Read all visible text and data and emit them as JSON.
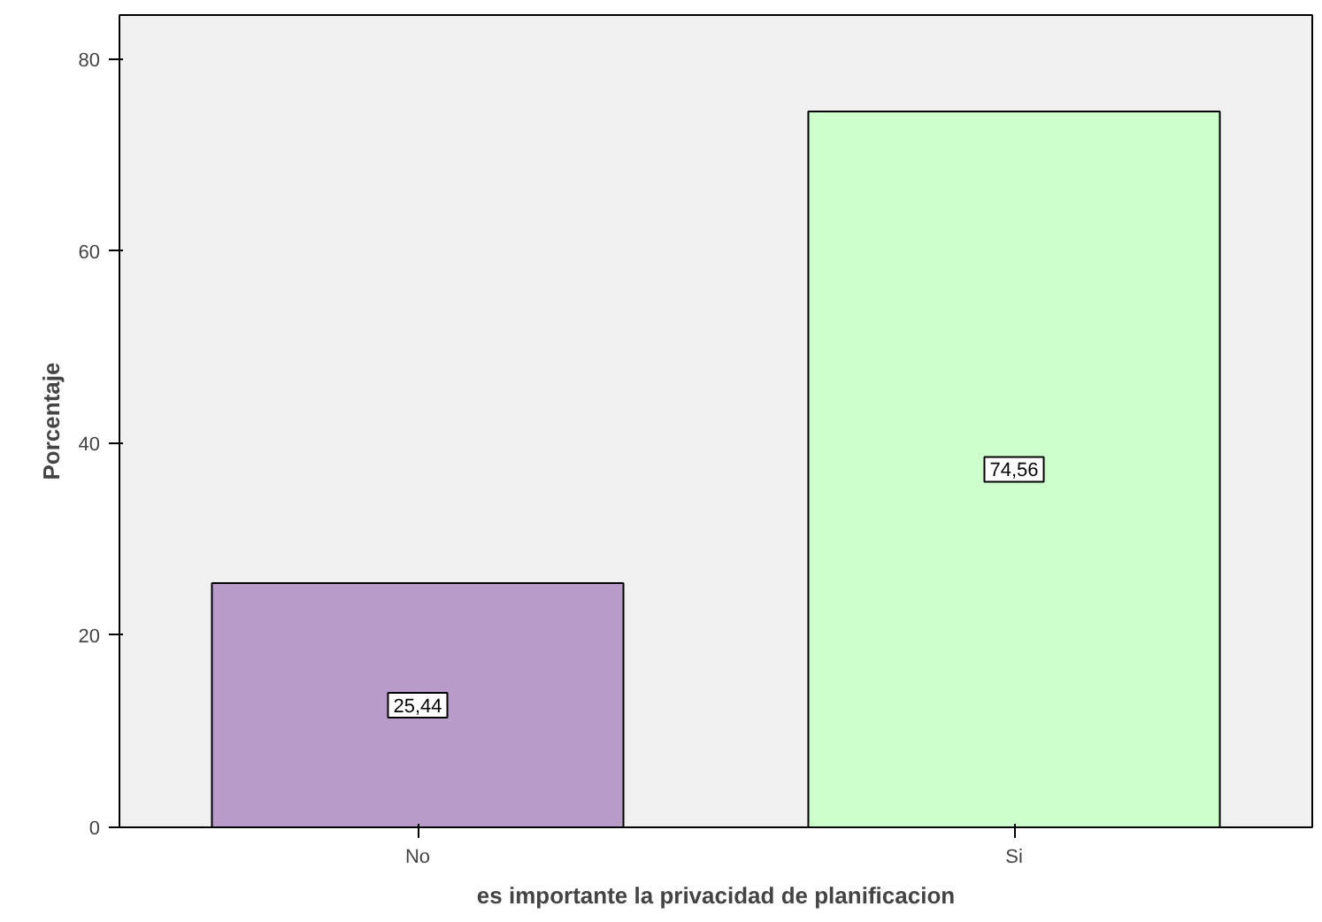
{
  "chart_data": {
    "type": "bar",
    "xlabel": "es importante la privacidad de planificacion",
    "ylabel": "Porcentaje",
    "categories": [
      "No",
      "Si"
    ],
    "values": [
      25.44,
      74.56
    ],
    "colors": [
      "#b89bc9",
      "#ccffcc"
    ],
    "value_labels": [
      "25,44",
      "74,56"
    ],
    "ylim": [
      0,
      84.6
    ],
    "yticks": [
      0,
      20,
      40,
      60,
      80
    ],
    "grid": false
  }
}
